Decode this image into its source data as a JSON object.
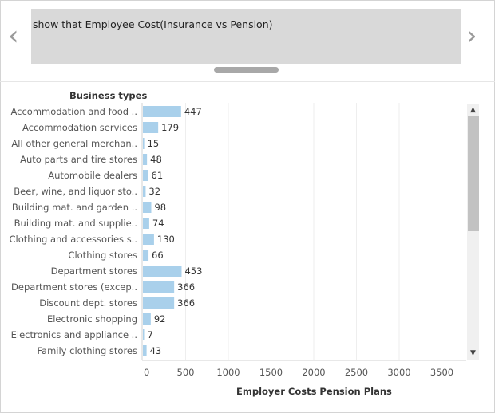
{
  "caption": {
    "text": "show that Employee Cost(Insurance vs Pension)"
  },
  "nav": {
    "prev_icon": "chevron-left-icon",
    "next_icon": "chevron-right-icon"
  },
  "colors": {
    "bar": "#a9d0eb",
    "grid": "#eeeeee",
    "caption_bg": "#d9d9d9"
  },
  "chart_data": {
    "type": "bar",
    "orientation": "horizontal",
    "row_header": "Business types",
    "xlabel": "Employer Costs Pension Plans",
    "xlim": [
      0,
      3900
    ],
    "xticks": [
      0,
      500,
      1000,
      1500,
      2000,
      2500,
      3000,
      3500
    ],
    "categories": [
      "Accommodation and food ..",
      "Accommodation services",
      "All other general merchan..",
      "Auto parts and tire stores",
      "Automobile dealers",
      "Beer, wine, and liquor sto..",
      "Building mat. and garden ..",
      "Building mat. and supplie..",
      "Clothing and accessories s..",
      "Clothing stores",
      "Department stores",
      "Department stores (excep..",
      "Discount dept. stores",
      "Electronic shopping",
      "Electronics and appliance ..",
      "Family clothing stores"
    ],
    "values": [
      447,
      179,
      15,
      48,
      61,
      32,
      98,
      74,
      130,
      66,
      453,
      366,
      366,
      92,
      7,
      43
    ],
    "grid": true
  }
}
